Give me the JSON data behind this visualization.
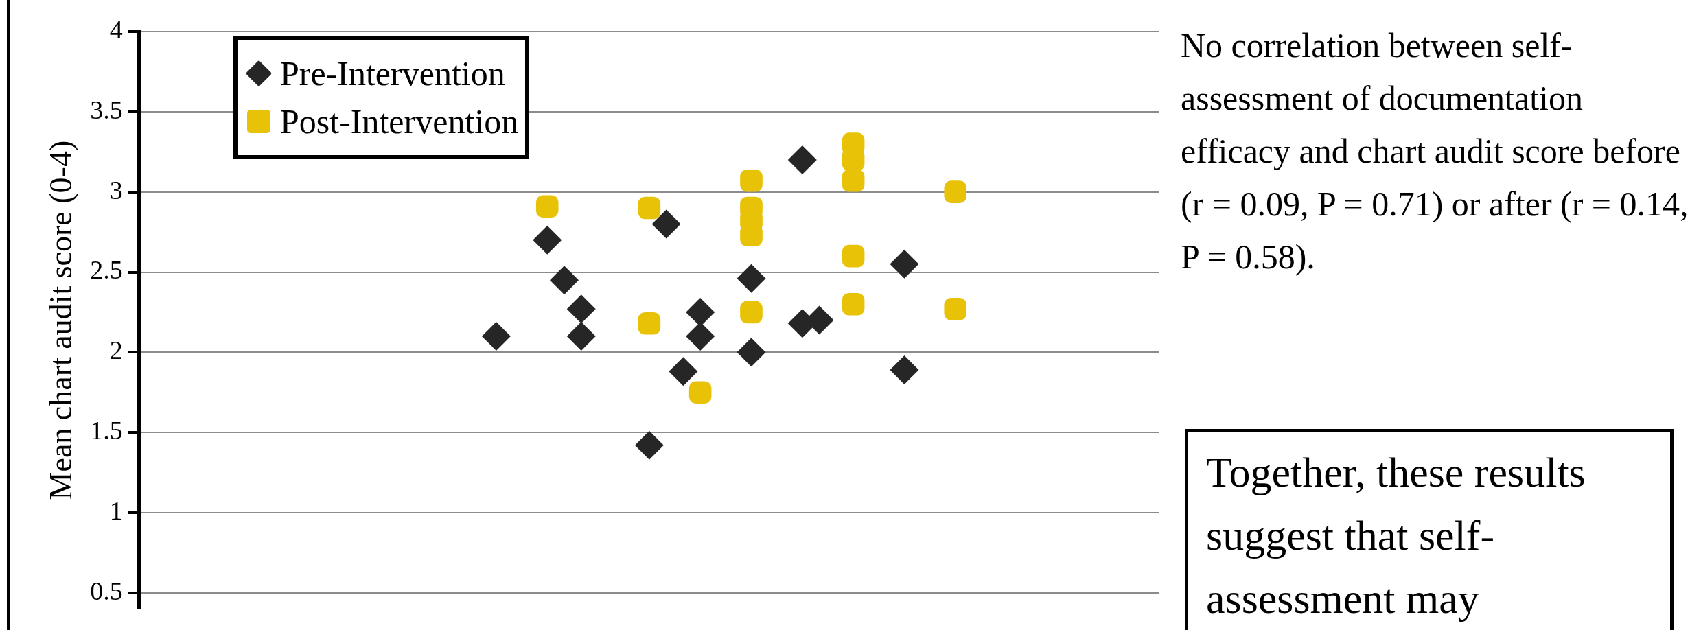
{
  "chart_data": {
    "type": "scatter",
    "categories": [
      null,
      null,
      null,
      null,
      null,
      null,
      null,
      null,
      null,
      null,
      null,
      null,
      null,
      null,
      null,
      null,
      null,
      null,
      null,
      null,
      null,
      null,
      null,
      null,
      null,
      null,
      null,
      null,
      null,
      null,
      null,
      null,
      null,
      null,
      null,
      null,
      null,
      null,
      null,
      null,
      null,
      null,
      null,
      null,
      null,
      null,
      null,
      null,
      null,
      null,
      null,
      null,
      null,
      null,
      null,
      null,
      null,
      null,
      null,
      null,
      null
    ],
    "series": [
      {
        "name": "Pre-Intervention",
        "color": "#262626",
        "marker": "diamond",
        "values": [
          null,
          null,
          null,
          null,
          null,
          null,
          null,
          null,
          null,
          null,
          null,
          null,
          null,
          null,
          null,
          null,
          null,
          null,
          null,
          null,
          null,
          2.1,
          null,
          null,
          2.7,
          2.45,
          2.27,
          null,
          null,
          null,
          1.42,
          2.8,
          1.88,
          2.25,
          null,
          null,
          2.46,
          null,
          null,
          3.2,
          2.2,
          null,
          null,
          null,
          null,
          2.55,
          null,
          null,
          null,
          null,
          null,
          null,
          null,
          null,
          null,
          null,
          null,
          null,
          null,
          null,
          null
        ]
      },
      {
        "name": "Post-Intervention",
        "color": "#e8c207",
        "marker": "square",
        "values": [
          null,
          null,
          null,
          null,
          null,
          null,
          null,
          null,
          null,
          null,
          null,
          null,
          null,
          null,
          null,
          null,
          null,
          null,
          null,
          null,
          null,
          null,
          null,
          null,
          2.91,
          null,
          null,
          null,
          null,
          null,
          2.9,
          null,
          null,
          1.75,
          null,
          null,
          3.07,
          null,
          null,
          null,
          null,
          null,
          3.3,
          null,
          null,
          null,
          null,
          null,
          3.0,
          null,
          null,
          null,
          null,
          null,
          null,
          null,
          null,
          null,
          null,
          null,
          null
        ]
      },
      {
        "color": "#262626",
        "marker": "diamond",
        "values": [
          null,
          null,
          null,
          null,
          null,
          null,
          null,
          null,
          null,
          null,
          null,
          null,
          null,
          null,
          null,
          null,
          null,
          null,
          null,
          null,
          null,
          null,
          null,
          null,
          null,
          null,
          2.1,
          null,
          null,
          null,
          null,
          null,
          null,
          2.1,
          null,
          null,
          2.0,
          null,
          null,
          2.18,
          null,
          null,
          null,
          null,
          null,
          1.89,
          null,
          null,
          null,
          null,
          null,
          null,
          null,
          null,
          null,
          null,
          null,
          null,
          null,
          null,
          null
        ]
      },
      {
        "color": "#e8c207",
        "marker": "square",
        "values": [
          null,
          null,
          null,
          null,
          null,
          null,
          null,
          null,
          null,
          null,
          null,
          null,
          null,
          null,
          null,
          null,
          null,
          null,
          null,
          null,
          null,
          null,
          null,
          null,
          null,
          null,
          null,
          null,
          null,
          null,
          2.18,
          null,
          null,
          null,
          null,
          null,
          2.9,
          null,
          null,
          null,
          null,
          null,
          3.2,
          null,
          null,
          null,
          null,
          null,
          2.27,
          null,
          null,
          null,
          null,
          null,
          null,
          null,
          null,
          null,
          null,
          null,
          null
        ]
      },
      {
        "color": "#e8c207",
        "marker": "square",
        "values": [
          null,
          null,
          null,
          null,
          null,
          null,
          null,
          null,
          null,
          null,
          null,
          null,
          null,
          null,
          null,
          null,
          null,
          null,
          null,
          null,
          null,
          null,
          null,
          null,
          null,
          null,
          null,
          null,
          null,
          null,
          null,
          null,
          null,
          null,
          null,
          null,
          2.82,
          null,
          null,
          null,
          null,
          null,
          3.07,
          null,
          null,
          null,
          null,
          null,
          null,
          null,
          null,
          null,
          null,
          null,
          null,
          null,
          null,
          null,
          null,
          null,
          null
        ]
      },
      {
        "color": "#e8c207",
        "marker": "square",
        "values": [
          null,
          null,
          null,
          null,
          null,
          null,
          null,
          null,
          null,
          null,
          null,
          null,
          null,
          null,
          null,
          null,
          null,
          null,
          null,
          null,
          null,
          null,
          null,
          null,
          null,
          null,
          null,
          null,
          null,
          null,
          null,
          null,
          null,
          null,
          null,
          null,
          2.73,
          null,
          null,
          null,
          null,
          null,
          2.6,
          null,
          null,
          null,
          null,
          null,
          null,
          null,
          null,
          null,
          null,
          null,
          null,
          null,
          null,
          null,
          null,
          null,
          null
        ]
      },
      {
        "color": "#e8c207",
        "marker": "square",
        "values": [
          null,
          null,
          null,
          null,
          null,
          null,
          null,
          null,
          null,
          null,
          null,
          null,
          null,
          null,
          null,
          null,
          null,
          null,
          null,
          null,
          null,
          null,
          null,
          null,
          null,
          null,
          null,
          null,
          null,
          null,
          null,
          null,
          null,
          null,
          null,
          null,
          2.25,
          null,
          null,
          null,
          null,
          null,
          2.3,
          null,
          null,
          null,
          null,
          null,
          null,
          null,
          null,
          null,
          null,
          null,
          null,
          null,
          null,
          null,
          null,
          null,
          null
        ]
      }
    ],
    "ylabel": "Mean chart audit score (0-4)",
    "ylim": [
      0.4,
      4
    ],
    "yticks": [
      0.5,
      1,
      1.5,
      2,
      2.5,
      3,
      3.5,
      4
    ],
    "grid": "y",
    "tick_labels": "y",
    "legend": "top left",
    "annotations": [
      "No correlation between self-assessment of documentation efficacy and chart audit score before (r = 0.09, P = 0.71) or after (r = 0.14, P = 0.58).",
      "Together, these results suggest that self-assessment may"
    ]
  }
}
